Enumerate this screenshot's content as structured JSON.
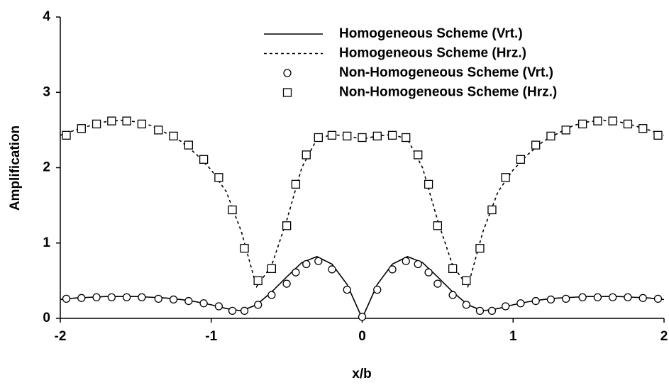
{
  "chart_data": {
    "type": "line",
    "xlabel": "x/b",
    "ylabel": "Amplification",
    "xlim": [
      -2,
      2
    ],
    "ylim": [
      0,
      4
    ],
    "xticks": [
      -2,
      -1,
      0,
      1,
      2
    ],
    "yticks": [
      0,
      1,
      2,
      3,
      4
    ],
    "grid": false,
    "legend": "top-right",
    "series": [
      {
        "name": "Homogeneous Scheme (Vrt.)",
        "color": "#000000",
        "style": "solid",
        "x": [
          -2,
          -1.9,
          -1.8,
          -1.7,
          -1.6,
          -1.5,
          -1.4,
          -1.3,
          -1.2,
          -1.1,
          -1.0,
          -0.9,
          -0.8,
          -0.7,
          -0.6,
          -0.5,
          -0.4,
          -0.3,
          -0.2,
          -0.1,
          0,
          0.1,
          0.2,
          0.3,
          0.4,
          0.5,
          0.6,
          0.7,
          0.8,
          0.9,
          1.0,
          1.1,
          1.2,
          1.3,
          1.4,
          1.5,
          1.6,
          1.7,
          1.8,
          1.9,
          2
        ],
        "values": [
          0.25,
          0.27,
          0.28,
          0.29,
          0.29,
          0.29,
          0.28,
          0.27,
          0.25,
          0.22,
          0.18,
          0.13,
          0.1,
          0.18,
          0.35,
          0.55,
          0.74,
          0.82,
          0.72,
          0.45,
          0.0,
          0.45,
          0.72,
          0.82,
          0.74,
          0.55,
          0.35,
          0.18,
          0.1,
          0.13,
          0.18,
          0.22,
          0.25,
          0.27,
          0.28,
          0.29,
          0.29,
          0.29,
          0.28,
          0.27,
          0.25
        ]
      },
      {
        "name": "Homogeneous Scheme (Hrz.)",
        "color": "#000000",
        "style": "dotted",
        "x": [
          -2,
          -1.9,
          -1.8,
          -1.7,
          -1.6,
          -1.5,
          -1.4,
          -1.3,
          -1.2,
          -1.1,
          -1.0,
          -0.9,
          -0.8,
          -0.7,
          -0.6,
          -0.5,
          -0.4,
          -0.3,
          -0.2,
          -0.1,
          0,
          0.1,
          0.2,
          0.3,
          0.4,
          0.5,
          0.6,
          0.7,
          0.8,
          0.9,
          1.0,
          1.1,
          1.2,
          1.3,
          1.4,
          1.5,
          1.6,
          1.7,
          1.8,
          1.9,
          2
        ],
        "values": [
          2.43,
          2.5,
          2.56,
          2.61,
          2.63,
          2.61,
          2.56,
          2.46,
          2.35,
          2.18,
          1.97,
          1.68,
          1.15,
          0.42,
          0.7,
          1.3,
          2.0,
          2.38,
          2.44,
          2.42,
          2.38,
          2.42,
          2.44,
          2.38,
          2.0,
          1.3,
          0.7,
          0.42,
          1.15,
          1.68,
          1.97,
          2.18,
          2.35,
          2.46,
          2.56,
          2.61,
          2.63,
          2.61,
          2.56,
          2.5,
          2.43
        ]
      },
      {
        "name": "Non-Homogeneous Scheme (Vrt.)",
        "color": "#000000",
        "style": "circle",
        "x": [
          -1.96,
          -1.86,
          -1.76,
          -1.66,
          -1.56,
          -1.46,
          -1.35,
          -1.25,
          -1.15,
          -1.05,
          -0.95,
          -0.86,
          -0.78,
          -0.69,
          -0.6,
          -0.5,
          -0.44,
          -0.37,
          -0.29,
          -0.2,
          -0.1,
          0,
          0.1,
          0.2,
          0.29,
          0.37,
          0.44,
          0.5,
          0.6,
          0.69,
          0.78,
          0.86,
          0.95,
          1.05,
          1.15,
          1.25,
          1.35,
          1.46,
          1.56,
          1.66,
          1.76,
          1.86,
          1.96
        ],
        "values": [
          0.26,
          0.27,
          0.28,
          0.28,
          0.28,
          0.28,
          0.26,
          0.25,
          0.23,
          0.2,
          0.16,
          0.1,
          0.1,
          0.18,
          0.31,
          0.46,
          0.61,
          0.72,
          0.76,
          0.65,
          0.38,
          0.02,
          0.38,
          0.65,
          0.76,
          0.72,
          0.61,
          0.46,
          0.31,
          0.18,
          0.1,
          0.1,
          0.16,
          0.2,
          0.23,
          0.25,
          0.26,
          0.28,
          0.28,
          0.28,
          0.28,
          0.27,
          0.26
        ]
      },
      {
        "name": "Non-Homogeneous Scheme (Hrz.)",
        "color": "#000000",
        "style": "square",
        "x": [
          -1.96,
          -1.86,
          -1.76,
          -1.66,
          -1.56,
          -1.46,
          -1.35,
          -1.25,
          -1.15,
          -1.05,
          -0.95,
          -0.86,
          -0.78,
          -0.69,
          -0.6,
          -0.5,
          -0.44,
          -0.37,
          -0.29,
          -0.2,
          -0.1,
          0,
          0.1,
          0.2,
          0.29,
          0.37,
          0.44,
          0.5,
          0.6,
          0.69,
          0.78,
          0.86,
          0.95,
          1.05,
          1.15,
          1.25,
          1.35,
          1.46,
          1.56,
          1.66,
          1.76,
          1.86,
          1.96
        ],
        "values": [
          2.43,
          2.52,
          2.58,
          2.62,
          2.62,
          2.58,
          2.5,
          2.42,
          2.3,
          2.11,
          1.87,
          1.44,
          0.93,
          0.5,
          0.66,
          1.23,
          1.78,
          2.17,
          2.4,
          2.43,
          2.42,
          2.4,
          2.42,
          2.43,
          2.4,
          2.17,
          1.78,
          1.23,
          0.66,
          0.5,
          0.93,
          1.44,
          1.87,
          2.11,
          2.3,
          2.42,
          2.5,
          2.58,
          2.62,
          2.62,
          2.58,
          2.52,
          2.43
        ]
      }
    ]
  }
}
